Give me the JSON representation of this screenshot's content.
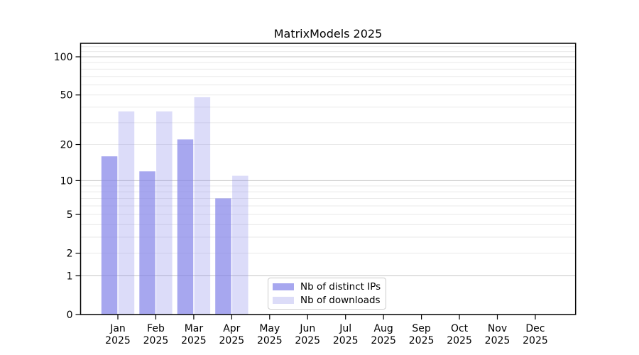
{
  "chart_data": {
    "type": "bar",
    "title": "MatrixModels 2025",
    "categories": [
      "Jan",
      "Feb",
      "Mar",
      "Apr",
      "May",
      "Jun",
      "Jul",
      "Aug",
      "Sep",
      "Oct",
      "Nov",
      "Dec"
    ],
    "category_year": "2025",
    "series": [
      {
        "name": "Nb of distinct IPs",
        "swatch_color": "#a7a7ef",
        "bar_color": "rgba(128,128,232,0.69)",
        "values": [
          16,
          12,
          22,
          7,
          null,
          null,
          null,
          null,
          null,
          null,
          null,
          null
        ]
      },
      {
        "name": "Nb of downloads",
        "swatch_color": "#dcdcf8",
        "bar_color": "rgba(128,128,232,0.28)",
        "values": [
          37,
          37,
          48,
          11,
          null,
          null,
          null,
          null,
          null,
          null,
          null,
          null
        ]
      }
    ],
    "yscale": "log1p",
    "ylim": [
      0,
      125
    ],
    "yticks": [
      0,
      1,
      2,
      5,
      10,
      20,
      50,
      100
    ],
    "ytick_labels": [
      "0",
      "1",
      "2",
      "5",
      "10",
      "20",
      "50",
      "100"
    ],
    "major_gridlines": [
      1,
      10,
      100
    ],
    "minor_gridlines": [
      2,
      3,
      4,
      5,
      6,
      7,
      8,
      9,
      20,
      30,
      40,
      50,
      60,
      70,
      80,
      90,
      110,
      120
    ],
    "legend_position": "lower center",
    "colors": {
      "background": "#ffffff",
      "spine": "#000000",
      "text": "#000000",
      "grid_major": "#c6c6c6",
      "grid_minor": "#eaeaea",
      "legend_border": "#cccccc"
    }
  }
}
